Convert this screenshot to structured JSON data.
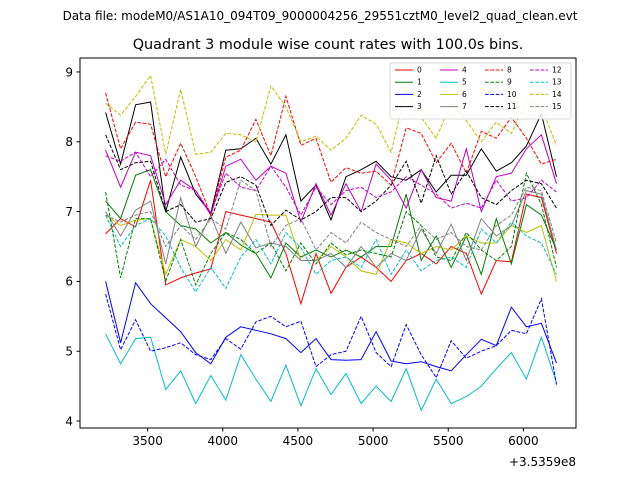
{
  "chart_data": {
    "type": "line",
    "suptitle": "Data file: modeM0/AS1A10_094T09_9000004256_29551cztM0_level2_quad_clean.evt",
    "title": "Quadrant 3 module wise count rates with 100.0s bins.",
    "xlabel": "",
    "ylabel": "",
    "x_offset_label": "+3.5359e8",
    "xlim": [
      3050,
      6350
    ],
    "ylim": [
      3.9,
      9.2
    ],
    "xticks": [
      3500,
      4000,
      4500,
      5000,
      5500,
      6000
    ],
    "yticks": [
      4,
      5,
      6,
      7,
      8,
      9
    ],
    "legend_location": "upper-right",
    "x": [
      3220,
      3320,
      3420,
      3520,
      3620,
      3720,
      3820,
      3920,
      4020,
      4120,
      4220,
      4320,
      4420,
      4520,
      4620,
      4720,
      4820,
      4920,
      5020,
      5120,
      5220,
      5320,
      5420,
      5520,
      5620,
      5720,
      5820,
      5920,
      6020,
      6120,
      6220
    ],
    "series": [
      {
        "name": "0",
        "color": "#ff0000",
        "dash": "solid",
        "values": [
          6.68,
          6.9,
          6.78,
          7.45,
          5.95,
          6.05,
          6.12,
          6.18,
          7.0,
          6.95,
          6.9,
          6.85,
          6.4,
          5.68,
          6.4,
          5.83,
          6.2,
          6.35,
          6.2,
          6.0,
          6.3,
          6.4,
          6.25,
          6.5,
          6.4,
          5.82,
          6.3,
          6.28,
          7.25,
          7.2,
          6.4
        ]
      },
      {
        "name": "1",
        "color": "#008000",
        "dash": "solid",
        "values": [
          7.15,
          6.9,
          7.52,
          7.6,
          7.0,
          6.8,
          6.75,
          6.55,
          6.7,
          6.52,
          6.4,
          6.05,
          6.55,
          6.35,
          6.45,
          6.35,
          6.45,
          6.35,
          6.5,
          6.5,
          7.25,
          6.3,
          6.65,
          6.2,
          6.65,
          6.1,
          6.9,
          6.25,
          7.1,
          6.95,
          6.45
        ]
      },
      {
        "name": "2",
        "color": "#0000ff",
        "dash": "solid",
        "values": [
          6.0,
          5.12,
          5.98,
          5.68,
          5.48,
          5.28,
          4.98,
          4.82,
          5.2,
          5.35,
          5.3,
          5.25,
          5.18,
          4.98,
          5.18,
          4.88,
          4.87,
          4.88,
          5.28,
          4.86,
          4.82,
          4.85,
          4.78,
          4.72,
          4.95,
          5.17,
          5.08,
          5.63,
          5.35,
          5.4,
          4.83
        ]
      },
      {
        "name": "3",
        "color": "#000000",
        "dash": "solid",
        "values": [
          8.42,
          7.68,
          8.53,
          8.57,
          7.0,
          7.78,
          7.25,
          6.98,
          7.88,
          7.9,
          8.05,
          7.68,
          8.1,
          7.15,
          7.38,
          6.88,
          7.5,
          7.6,
          7.72,
          7.5,
          7.45,
          7.6,
          7.28,
          7.52,
          7.52,
          7.9,
          7.58,
          7.7,
          7.94,
          8.4,
          7.5
        ]
      },
      {
        "name": "4",
        "color": "#bf00bf",
        "dash": "solid",
        "values": [
          7.88,
          7.35,
          7.85,
          7.8,
          7.1,
          7.45,
          7.3,
          6.95,
          7.65,
          7.75,
          7.45,
          7.65,
          7.55,
          6.85,
          7.4,
          6.95,
          7.4,
          7.0,
          7.68,
          7.45,
          7.05,
          7.6,
          7.2,
          7.15,
          7.9,
          7.0,
          7.5,
          7.55,
          7.9,
          8.1,
          7.4
        ]
      },
      {
        "name": "5",
        "color": "#00bfbf",
        "dash": "solid",
        "values": [
          5.25,
          4.82,
          5.18,
          5.2,
          4.45,
          4.72,
          4.25,
          4.65,
          4.3,
          4.95,
          4.6,
          4.28,
          4.8,
          4.22,
          4.75,
          4.38,
          4.68,
          4.25,
          4.5,
          4.28,
          4.75,
          4.15,
          4.6,
          4.25,
          4.35,
          4.5,
          4.75,
          4.98,
          4.6,
          5.2,
          4.55
        ]
      },
      {
        "name": "6",
        "color": "#bfbf00",
        "dash": "solid",
        "values": [
          6.95,
          6.8,
          6.88,
          6.9,
          6.1,
          6.6,
          6.5,
          6.3,
          6.6,
          6.45,
          6.96,
          6.95,
          6.95,
          6.3,
          6.3,
          6.5,
          6.35,
          6.15,
          6.1,
          6.6,
          6.55,
          6.4,
          6.5,
          6.45,
          6.65,
          6.55,
          6.55,
          6.8,
          6.7,
          6.8,
          6.0
        ]
      },
      {
        "name": "7",
        "color": "#808080",
        "dash": "solid",
        "values": [
          7.0,
          6.65,
          7.02,
          7.15,
          6.25,
          7.2,
          6.5,
          6.95,
          6.4,
          6.85,
          6.48,
          6.55,
          6.5,
          6.3,
          6.3,
          6.4,
          6.2,
          6.5,
          6.2,
          6.4,
          6.3,
          6.75,
          6.4,
          6.82,
          6.3,
          6.9,
          6.65,
          6.8,
          7.3,
          7.25,
          6.45
        ]
      },
      {
        "name": "8",
        "color": "#ff0000",
        "dash": "dashed",
        "values": [
          8.7,
          7.9,
          8.28,
          8.25,
          7.5,
          7.98,
          7.5,
          6.95,
          7.78,
          7.88,
          8.32,
          7.8,
          8.65,
          7.95,
          8.05,
          7.42,
          7.63,
          7.55,
          7.58,
          7.38,
          8.2,
          8.12,
          7.7,
          7.98,
          7.55,
          8.15,
          8.05,
          8.35,
          8.05,
          7.68,
          7.75
        ]
      },
      {
        "name": "9",
        "color": "#008000",
        "dash": "dashed",
        "values": [
          7.28,
          6.05,
          6.9,
          6.9,
          6.0,
          6.6,
          5.95,
          6.4,
          6.7,
          6.6,
          6.4,
          6.55,
          6.15,
          6.55,
          6.25,
          6.55,
          6.38,
          6.45,
          6.4,
          6.35,
          7.0,
          6.8,
          6.35,
          6.3,
          6.7,
          6.45,
          6.3,
          6.5,
          7.55,
          7.1,
          6.2
        ]
      },
      {
        "name": "10",
        "color": "#0000ff",
        "dash": "dashed",
        "values": [
          5.82,
          5.02,
          5.45,
          5.0,
          5.05,
          5.12,
          4.95,
          4.88,
          5.18,
          5.03,
          5.42,
          5.5,
          5.35,
          5.43,
          4.78,
          4.95,
          5.0,
          5.5,
          4.98,
          4.78,
          5.38,
          4.95,
          4.62,
          5.15,
          4.9,
          5.0,
          5.08,
          5.3,
          5.25,
          5.75,
          4.52
        ]
      },
      {
        "name": "11",
        "color": "#000000",
        "dash": "dashed",
        "values": [
          8.1,
          7.6,
          7.7,
          7.72,
          7.0,
          7.1,
          6.85,
          6.9,
          7.42,
          7.5,
          7.38,
          6.8,
          7.02,
          6.88,
          7.0,
          7.2,
          7.2,
          7.0,
          7.15,
          7.38,
          7.72,
          7.12,
          7.8,
          7.25,
          7.58,
          7.2,
          7.1,
          7.3,
          7.45,
          7.4,
          7.05
        ]
      },
      {
        "name": "12",
        "color": "#bf00bf",
        "dash": "dashed",
        "values": [
          7.8,
          7.72,
          7.85,
          7.5,
          7.75,
          7.38,
          7.3,
          6.98,
          7.55,
          7.35,
          7.3,
          7.65,
          7.35,
          6.95,
          7.35,
          7.1,
          7.3,
          7.35,
          7.2,
          7.28,
          7.5,
          7.38,
          7.25,
          7.05,
          7.12,
          7.05,
          7.45,
          7.15,
          7.2,
          7.45,
          7.28
        ]
      },
      {
        "name": "13",
        "color": "#00bfbf",
        "dash": "dashed",
        "values": [
          6.95,
          6.5,
          6.8,
          6.9,
          6.65,
          6.2,
          5.85,
          6.2,
          5.9,
          6.35,
          6.6,
          6.25,
          6.7,
          6.48,
          6.1,
          6.3,
          6.35,
          6.2,
          6.6,
          6.1,
          6.45,
          6.15,
          6.3,
          6.35,
          6.2,
          6.75,
          6.55,
          6.85,
          6.65,
          6.55,
          6.1
        ]
      },
      {
        "name": "14",
        "color": "#bfbf00",
        "dash": "dashed",
        "values": [
          8.55,
          8.38,
          8.65,
          8.95,
          7.82,
          8.75,
          7.82,
          7.85,
          8.12,
          8.1,
          8.0,
          8.8,
          8.5,
          8.0,
          8.08,
          7.88,
          8.05,
          8.38,
          8.25,
          7.85,
          8.75,
          8.35,
          8.05,
          8.55,
          8.3,
          8.0,
          8.28,
          8.12,
          8.6,
          8.5,
          7.95
        ]
      },
      {
        "name": "15",
        "color": "#808080",
        "dash": "dashed",
        "values": [
          6.95,
          6.85,
          6.95,
          7.0,
          6.5,
          6.8,
          6.6,
          6.9,
          6.75,
          7.45,
          7.3,
          6.5,
          6.8,
          6.9,
          6.45,
          6.7,
          6.55,
          6.85,
          6.7,
          6.6,
          6.5,
          6.8,
          6.6,
          6.7,
          6.5,
          6.45,
          6.8,
          6.95,
          7.35,
          7.3,
          6.55
        ]
      }
    ]
  }
}
